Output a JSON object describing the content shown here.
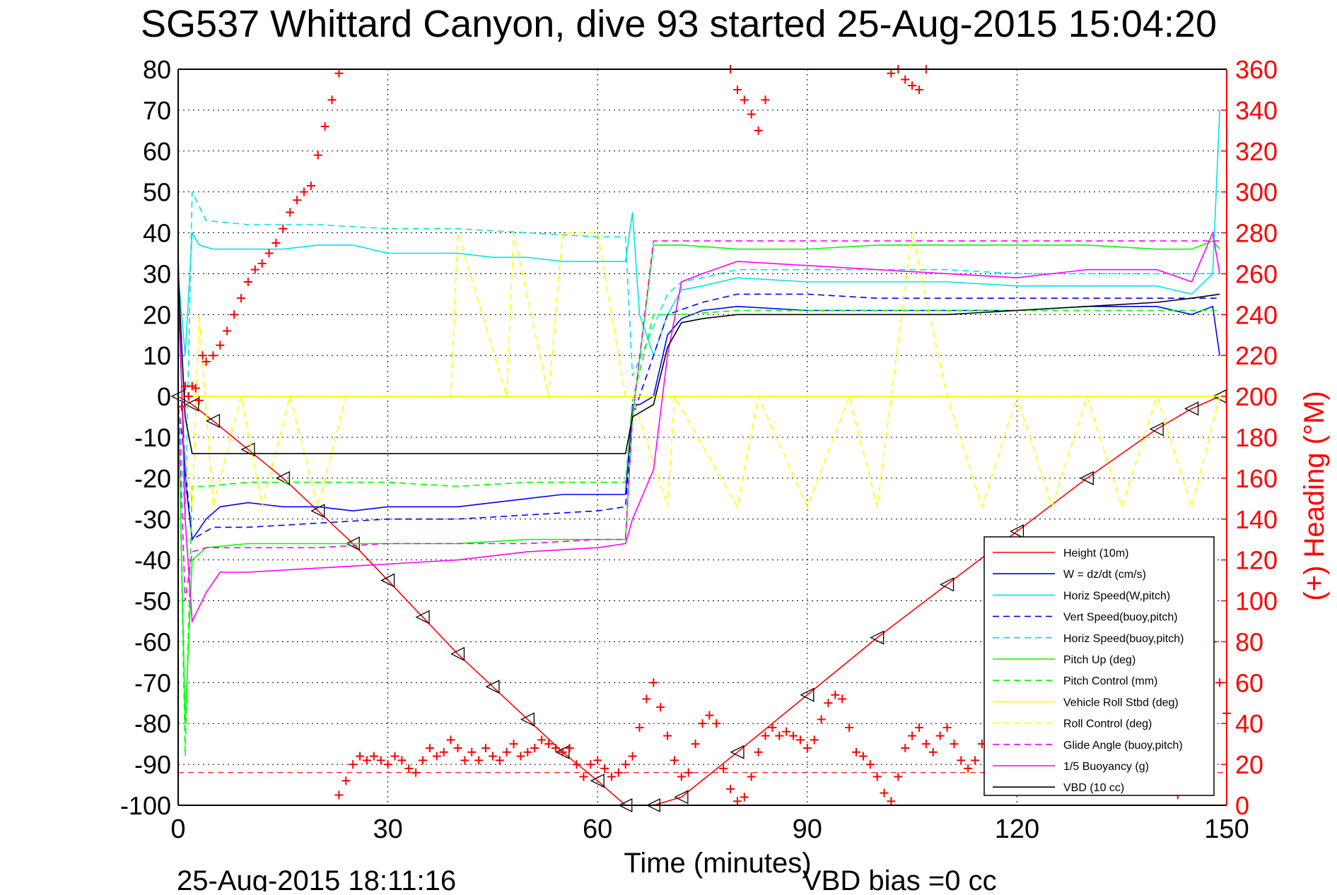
{
  "title": "SG537 Whittard Canyon, dive 93 started 25-Aug-2015 15:04:20",
  "footer_left": "25-Aug-2015 18:11:16",
  "footer_right": "VBD bias =0 cc",
  "colors": {
    "height": "#ff0000",
    "w": "#0000ff",
    "horiz_w": "#00e5e5",
    "vert_buoy": "#0000ff",
    "horiz_buoy": "#00e5e5",
    "pitch_up": "#00ff00",
    "pitch_ctrl": "#00ff00",
    "roll": "#ffff00",
    "roll_ctrl": "#ffff00",
    "glide": "#ff00ff",
    "buoyancy": "#ff00ff",
    "vbd": "#000000",
    "heading": "#ff0000"
  },
  "chart_data": {
    "type": "line",
    "title": "SG537 Whittard Canyon, dive 93 started 25-Aug-2015 15:04:20",
    "xlabel": "Time (minutes)",
    "ylabel": "",
    "ylabel_right": "(+) Heading (°M)",
    "xlim": [
      0,
      150
    ],
    "ylim": [
      -100,
      80
    ],
    "ylim_right": [
      0,
      360
    ],
    "xticks": [
      "0",
      "30",
      "60",
      "90",
      "120",
      "150"
    ],
    "yticks": [
      "80",
      "70",
      "60",
      "50",
      "40",
      "30",
      "20",
      "10",
      "0",
      "-10",
      "-20",
      "-30",
      "-40",
      "-50",
      "-60",
      "-70",
      "-80",
      "-90",
      "-100"
    ],
    "yticks_right": [
      "360",
      "340",
      "320",
      "300",
      "280",
      "260",
      "240",
      "220",
      "200",
      "180",
      "160",
      "140",
      "120",
      "100",
      "80",
      "60",
      "40",
      "20",
      "0"
    ],
    "grid": true,
    "legend_position": "bottom-right",
    "series": [
      {
        "name": "Height (10m)",
        "color_key": "height",
        "style": "solid-triangles",
        "x": [
          0,
          2,
          5,
          10,
          15,
          20,
          25,
          30,
          35,
          40,
          45,
          50,
          55,
          60,
          64,
          68,
          72,
          80,
          90,
          100,
          110,
          120,
          130,
          140,
          145,
          149
        ],
        "y": [
          0,
          -2,
          -6,
          -13,
          -20,
          -28,
          -36,
          -45,
          -54,
          -63,
          -71,
          -79,
          -87,
          -94,
          -100,
          -100,
          -98,
          -87,
          -73,
          -59,
          -46,
          -33,
          -20,
          -8,
          -3,
          0
        ]
      },
      {
        "name": "W = dz/dt (cm/s)",
        "color_key": "w",
        "style": "solid",
        "x": [
          0,
          1,
          2,
          4,
          6,
          10,
          15,
          20,
          25,
          30,
          35,
          40,
          45,
          50,
          55,
          60,
          64,
          65,
          66,
          68,
          70,
          72,
          75,
          80,
          90,
          100,
          110,
          120,
          130,
          140,
          145,
          148,
          149
        ],
        "y": [
          25,
          -20,
          -35,
          -30,
          -27,
          -26,
          -27,
          -27,
          -28,
          -27,
          -27,
          -27,
          -26,
          -25,
          -24,
          -24,
          -24,
          -2,
          -2,
          0,
          15,
          19,
          21,
          22,
          21,
          21,
          21,
          21,
          22,
          22,
          20,
          22,
          10
        ]
      },
      {
        "name": "Horiz Speed(W,pitch)",
        "color_key": "horiz_w",
        "style": "solid",
        "x": [
          0,
          1,
          2,
          3,
          5,
          10,
          15,
          20,
          25,
          30,
          35,
          40,
          45,
          50,
          55,
          60,
          64,
          65,
          66,
          68,
          70,
          72,
          75,
          80,
          90,
          100,
          110,
          120,
          130,
          140,
          145,
          148,
          149
        ],
        "y": [
          30,
          10,
          40,
          37,
          36,
          36,
          36,
          37,
          37,
          35,
          35,
          35,
          34,
          34,
          33,
          33,
          33,
          45,
          20,
          10,
          20,
          26,
          27,
          29,
          28,
          28,
          28,
          27,
          27,
          27,
          25,
          30,
          70
        ]
      },
      {
        "name": "Vert Speed(buoy,pitch)",
        "color_key": "vert_buoy",
        "style": "dashed",
        "x": [
          0,
          2,
          5,
          10,
          20,
          30,
          40,
          50,
          60,
          64,
          65,
          70,
          75,
          80,
          90,
          100,
          110,
          120,
          130,
          140,
          149
        ],
        "y": [
          0,
          -35,
          -32,
          -32,
          -31,
          -30,
          -30,
          -29,
          -28,
          -27,
          -5,
          20,
          23,
          25,
          25,
          24,
          24,
          24,
          24,
          24,
          24
        ]
      },
      {
        "name": "Horiz Speed(buoy,pitch)",
        "color_key": "horiz_buoy",
        "style": "dashed",
        "x": [
          0,
          1,
          2,
          4,
          10,
          20,
          30,
          40,
          50,
          60,
          64,
          65,
          70,
          72,
          75,
          80,
          90,
          100,
          110,
          120,
          130,
          140,
          149
        ],
        "y": [
          0,
          -30,
          50,
          43,
          42,
          42,
          41,
          41,
          40,
          39,
          39,
          5,
          25,
          28,
          29,
          31,
          31,
          31,
          31,
          30,
          30,
          30,
          30
        ]
      },
      {
        "name": "Pitch Up (deg)",
        "color_key": "pitch_up",
        "style": "solid",
        "x": [
          0,
          1,
          2,
          4,
          10,
          20,
          30,
          40,
          50,
          60,
          64,
          65,
          68,
          70,
          72,
          80,
          90,
          100,
          110,
          120,
          130,
          140,
          145,
          148,
          149
        ],
        "y": [
          0,
          -80,
          -40,
          -37,
          -36,
          -36,
          -36,
          -36,
          -35,
          -35,
          -35,
          -5,
          37,
          37,
          37,
          36,
          36,
          37,
          37,
          37,
          37,
          36,
          36,
          38,
          36
        ]
      },
      {
        "name": "Pitch Control (mm)",
        "color_key": "pitch_ctrl",
        "style": "dashed",
        "x": [
          0,
          1,
          2,
          4,
          10,
          20,
          30,
          40,
          50,
          60,
          64,
          65,
          68,
          70,
          72,
          80,
          90,
          100,
          110,
          120,
          130,
          140,
          149
        ],
        "y": [
          0,
          -88,
          -22,
          -22,
          -21,
          -21,
          -21,
          -22,
          -21,
          -21,
          -21,
          -1,
          20,
          20,
          20,
          21,
          21,
          21,
          21,
          21,
          21,
          21,
          21
        ]
      },
      {
        "name": "Vehicle Roll Stbd (deg)",
        "color_key": "roll",
        "style": "solid",
        "x": [
          0,
          2,
          4,
          10,
          20,
          30,
          40,
          50,
          60,
          64,
          65,
          70,
          80,
          90,
          100,
          110,
          120,
          130,
          140,
          149
        ],
        "y": [
          0,
          0,
          0,
          0,
          0,
          0,
          0,
          0,
          0,
          0,
          0,
          0,
          0,
          0,
          0,
          0,
          0,
          0,
          0,
          0
        ]
      },
      {
        "name": "Roll Control (deg)",
        "color_key": "roll_ctrl",
        "style": "dashed",
        "x": [
          0,
          2,
          3,
          5,
          9,
          12,
          16,
          20,
          24,
          30,
          39,
          40,
          47,
          48,
          53,
          55,
          60,
          64,
          65,
          70,
          71,
          80,
          83,
          90,
          96,
          100,
          105,
          110,
          115,
          120,
          125,
          130,
          135,
          140,
          145,
          149
        ],
        "y": [
          0,
          -27,
          20,
          -27,
          0,
          -27,
          0,
          -27,
          0,
          0,
          0,
          40,
          0,
          40,
          0,
          40,
          40,
          0,
          0,
          -27,
          0,
          -27,
          0,
          -27,
          0,
          -27,
          40,
          0,
          -27,
          0,
          -27,
          0,
          -27,
          0,
          -27,
          0
        ]
      },
      {
        "name": "Glide Angle (buoy,pitch)",
        "color_key": "glide",
        "style": "dashed",
        "x": [
          0,
          1,
          2,
          4,
          10,
          20,
          30,
          40,
          50,
          60,
          64,
          65,
          68,
          70,
          72,
          80,
          90,
          100,
          110,
          120,
          130,
          140,
          145,
          149
        ],
        "y": [
          0,
          -50,
          -38,
          -37,
          -37,
          -37,
          -36,
          -36,
          -36,
          -35,
          -35,
          -5,
          38,
          38,
          38,
          38,
          38,
          38,
          38,
          38,
          38,
          38,
          38,
          38
        ]
      },
      {
        "name": "1/5 Buoyancy (g)",
        "color_key": "buoyancy",
        "style": "solid",
        "x": [
          0,
          1,
          2,
          4,
          6,
          10,
          20,
          30,
          40,
          50,
          60,
          64,
          65,
          68,
          70,
          72,
          75,
          80,
          90,
          100,
          110,
          120,
          130,
          140,
          145,
          148,
          149
        ],
        "y": [
          35,
          -30,
          -55,
          -48,
          -43,
          -43,
          -42,
          -41,
          -40,
          -38,
          -37,
          -36,
          -30,
          -18,
          10,
          28,
          30,
          33,
          32,
          31,
          30,
          29,
          31,
          31,
          28,
          40,
          30
        ]
      },
      {
        "name": "VBD (10 cc)",
        "color_key": "vbd",
        "style": "solid",
        "x": [
          0,
          1,
          2,
          30,
          64,
          65,
          68,
          70,
          72,
          75,
          80,
          90,
          100,
          110,
          120,
          130,
          140,
          145,
          149
        ],
        "y": [
          30,
          -5,
          -14,
          -14,
          -14,
          -5,
          -2,
          12,
          18,
          19,
          20,
          20,
          20,
          20,
          21,
          22,
          23,
          24,
          25
        ]
      }
    ],
    "heading_series": {
      "axis": "right",
      "marker": "+",
      "color_key": "heading",
      "points": [
        [
          0.5,
          195
        ],
        [
          1,
          205
        ],
        [
          1.5,
          200
        ],
        [
          2,
          205
        ],
        [
          2.5,
          204
        ],
        [
          3,
          198
        ],
        [
          3.5,
          220
        ],
        [
          4,
          217
        ],
        [
          5,
          220
        ],
        [
          6,
          225
        ],
        [
          7,
          232
        ],
        [
          8,
          240
        ],
        [
          9,
          248
        ],
        [
          10,
          256
        ],
        [
          11,
          262
        ],
        [
          12,
          265
        ],
        [
          13,
          270
        ],
        [
          14,
          275
        ],
        [
          15,
          282
        ],
        [
          16,
          290
        ],
        [
          17,
          296
        ],
        [
          18,
          300
        ],
        [
          19,
          303
        ],
        [
          20,
          318
        ],
        [
          21,
          332
        ],
        [
          22,
          345
        ],
        [
          23,
          358
        ],
        [
          23,
          5
        ],
        [
          24,
          12
        ],
        [
          25,
          20
        ],
        [
          26,
          24
        ],
        [
          27,
          22
        ],
        [
          28,
          24
        ],
        [
          29,
          22
        ],
        [
          30,
          20
        ],
        [
          31,
          24
        ],
        [
          32,
          22
        ],
        [
          33,
          18
        ],
        [
          34,
          16
        ],
        [
          35,
          22
        ],
        [
          36,
          28
        ],
        [
          37,
          24
        ],
        [
          38,
          26
        ],
        [
          39,
          32
        ],
        [
          40,
          28
        ],
        [
          41,
          22
        ],
        [
          42,
          26
        ],
        [
          43,
          22
        ],
        [
          44,
          28
        ],
        [
          45,
          24
        ],
        [
          46,
          22
        ],
        [
          47,
          26
        ],
        [
          48,
          30
        ],
        [
          49,
          24
        ],
        [
          50,
          26
        ],
        [
          51,
          28
        ],
        [
          52,
          32
        ],
        [
          53,
          30
        ],
        [
          54,
          28
        ],
        [
          55,
          26
        ],
        [
          56,
          28
        ],
        [
          57,
          20
        ],
        [
          58,
          14
        ],
        [
          59,
          20
        ],
        [
          60,
          22
        ],
        [
          61,
          18
        ],
        [
          62,
          14
        ],
        [
          63,
          16
        ],
        [
          64,
          20
        ],
        [
          65,
          24
        ],
        [
          66,
          38
        ],
        [
          67,
          52
        ],
        [
          68,
          60
        ],
        [
          69,
          48
        ],
        [
          70,
          34
        ],
        [
          71,
          22
        ],
        [
          72,
          14
        ],
        [
          73,
          16
        ],
        [
          74,
          30
        ],
        [
          75,
          40
        ],
        [
          76,
          44
        ],
        [
          77,
          40
        ],
        [
          78,
          18
        ],
        [
          79,
          8
        ],
        [
          80,
          2
        ],
        [
          81,
          4
        ],
        [
          82,
          14
        ],
        [
          83,
          26
        ],
        [
          84,
          34
        ],
        [
          85,
          38
        ],
        [
          86,
          34
        ],
        [
          87,
          36
        ],
        [
          88,
          34
        ],
        [
          89,
          32
        ],
        [
          90,
          28
        ],
        [
          91,
          32
        ],
        [
          92,
          42
        ],
        [
          93,
          50
        ],
        [
          94,
          54
        ],
        [
          95,
          52
        ],
        [
          96,
          38
        ],
        [
          97,
          26
        ],
        [
          98,
          24
        ],
        [
          99,
          20
        ],
        [
          100,
          14
        ],
        [
          101,
          6
        ],
        [
          102,
          2
        ],
        [
          103,
          14
        ],
        [
          104,
          28
        ],
        [
          105,
          34
        ],
        [
          106,
          38
        ],
        [
          107,
          30
        ],
        [
          108,
          26
        ],
        [
          109,
          34
        ],
        [
          110,
          38
        ],
        [
          111,
          30
        ],
        [
          112,
          22
        ],
        [
          113,
          18
        ],
        [
          114,
          22
        ],
        [
          115,
          30
        ],
        [
          79,
          360
        ],
        [
          80,
          350
        ],
        [
          81,
          345
        ],
        [
          82,
          338
        ],
        [
          83,
          330
        ],
        [
          84,
          345
        ],
        [
          102,
          358
        ],
        [
          103,
          360
        ],
        [
          104,
          355
        ],
        [
          105,
          352
        ],
        [
          106,
          350
        ],
        [
          107,
          360
        ],
        [
          148,
          80
        ],
        [
          149,
          60
        ],
        [
          150,
          45
        ],
        [
          143,
          5
        ]
      ]
    },
    "reference_line": {
      "y": -92,
      "color_key": "height",
      "style": "dashed"
    }
  }
}
